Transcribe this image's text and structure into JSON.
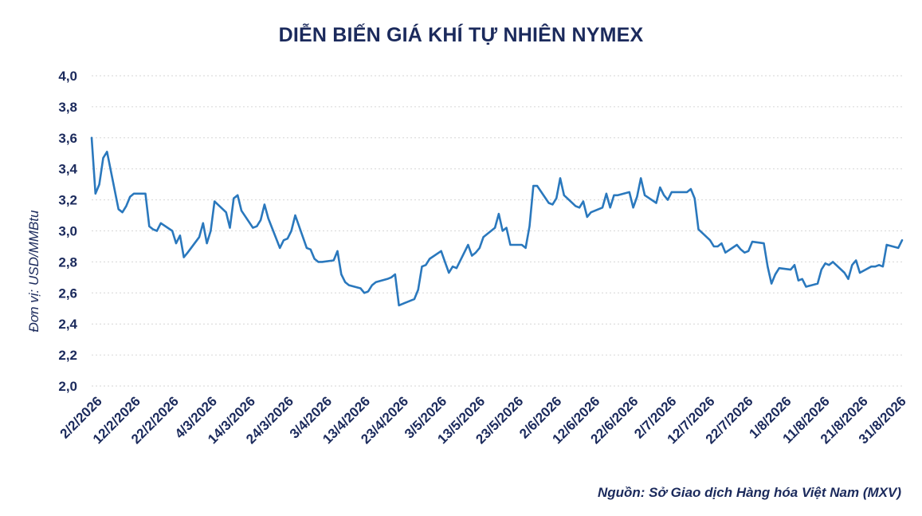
{
  "chart_data": {
    "type": "line",
    "title": "DIỄN BIẾN GIÁ KHÍ TỰ NHIÊN NYMEX",
    "ylabel": "Đơn vị: USD/MMBtu",
    "xlabel": "",
    "source": "Nguồn: Sở Giao dịch Hàng hóa Việt Nam (MXV)",
    "ylim": [
      2.0,
      4.0
    ],
    "yticks": [
      "4,0",
      "3,8",
      "3,6",
      "3,4",
      "3,2",
      "3,0",
      "2,8",
      "2,6",
      "2,4",
      "2,2",
      "2,0"
    ],
    "xticks": [
      "2/2/2026",
      "12/2/2026",
      "22/2/2026",
      "4/3/2026",
      "14/3/2026",
      "24/3/2026",
      "3/4/2026",
      "13/4/2026",
      "23/4/2026",
      "3/5/2026",
      "13/5/2026",
      "23/5/2026",
      "2/6/2026",
      "12/6/2026",
      "22/6/2026",
      "2/7/2026",
      "12/7/2026",
      "22/7/2026",
      "1/8/2026",
      "11/8/2026",
      "21/8/2026",
      "31/8/2026"
    ],
    "grid": true,
    "color": "#2a78bd",
    "series": [
      {
        "x": [
          "2026-02-02",
          "2026-02-03",
          "2026-02-04",
          "2026-02-05",
          "2026-02-06",
          "2026-02-09",
          "2026-02-10",
          "2026-02-11",
          "2026-02-12",
          "2026-02-13",
          "2026-02-16",
          "2026-02-17",
          "2026-02-18",
          "2026-02-19",
          "2026-02-20",
          "2026-02-23",
          "2026-02-24",
          "2026-02-25",
          "2026-02-26",
          "2026-02-27",
          "2026-03-02",
          "2026-03-03",
          "2026-03-04",
          "2026-03-05",
          "2026-03-06",
          "2026-03-09",
          "2026-03-10",
          "2026-03-11",
          "2026-03-12",
          "2026-03-13",
          "2026-03-16",
          "2026-03-17",
          "2026-03-18",
          "2026-03-19",
          "2026-03-20",
          "2026-03-23",
          "2026-03-24",
          "2026-03-25",
          "2026-03-26",
          "2026-03-27",
          "2026-03-30",
          "2026-03-31",
          "2026-04-01",
          "2026-04-02",
          "2026-04-03",
          "2026-04-06",
          "2026-04-07",
          "2026-04-08",
          "2026-04-09",
          "2026-04-10",
          "2026-04-13",
          "2026-04-14",
          "2026-04-15",
          "2026-04-16",
          "2026-04-17",
          "2026-04-20",
          "2026-04-21",
          "2026-04-22",
          "2026-04-23",
          "2026-04-24",
          "2026-04-27",
          "2026-04-28",
          "2026-04-29",
          "2026-04-30",
          "2026-05-01",
          "2026-05-04",
          "2026-05-05",
          "2026-05-06",
          "2026-05-07",
          "2026-05-08",
          "2026-05-11",
          "2026-05-12",
          "2026-05-13",
          "2026-05-14",
          "2026-05-15",
          "2026-05-18",
          "2026-05-19",
          "2026-05-20",
          "2026-05-21",
          "2026-05-22",
          "2026-05-25",
          "2026-05-26",
          "2026-05-27",
          "2026-05-28",
          "2026-05-29",
          "2026-06-01",
          "2026-06-02",
          "2026-06-03",
          "2026-06-04",
          "2026-06-05",
          "2026-06-08",
          "2026-06-09",
          "2026-06-10",
          "2026-06-11",
          "2026-06-12",
          "2026-06-15",
          "2026-06-16",
          "2026-06-17",
          "2026-06-18",
          "2026-06-19",
          "2026-06-22",
          "2026-06-23",
          "2026-06-24",
          "2026-06-25",
          "2026-06-26",
          "2026-06-29",
          "2026-06-30",
          "2026-07-01",
          "2026-07-02",
          "2026-07-03",
          "2026-07-06",
          "2026-07-07",
          "2026-07-08",
          "2026-07-09",
          "2026-07-10",
          "2026-07-13",
          "2026-07-14",
          "2026-07-15",
          "2026-07-16",
          "2026-07-17",
          "2026-07-20",
          "2026-07-21",
          "2026-07-22",
          "2026-07-23",
          "2026-07-24",
          "2026-07-27",
          "2026-07-28",
          "2026-07-29",
          "2026-07-30",
          "2026-07-31",
          "2026-08-03",
          "2026-08-04",
          "2026-08-05",
          "2026-08-06",
          "2026-08-07",
          "2026-08-10",
          "2026-08-11",
          "2026-08-12",
          "2026-08-13",
          "2026-08-14",
          "2026-08-17",
          "2026-08-18",
          "2026-08-19",
          "2026-08-20",
          "2026-08-21",
          "2026-08-24",
          "2026-08-25",
          "2026-08-26",
          "2026-08-27",
          "2026-08-28",
          "2026-08-31",
          "2026-09-01"
        ],
        "y": [
          3.6,
          3.24,
          3.3,
          3.47,
          3.51,
          3.14,
          3.12,
          3.16,
          3.22,
          3.24,
          3.24,
          3.03,
          3.01,
          3.0,
          3.05,
          3.0,
          2.92,
          2.97,
          2.83,
          2.86,
          2.96,
          3.05,
          2.92,
          3.0,
          3.19,
          3.12,
          3.02,
          3.21,
          3.23,
          3.13,
          3.02,
          3.03,
          3.07,
          3.17,
          3.08,
          2.89,
          2.94,
          2.95,
          3.0,
          3.1,
          2.89,
          2.88,
          2.82,
          2.8,
          2.8,
          2.81,
          2.87,
          2.72,
          2.67,
          2.65,
          2.63,
          2.6,
          2.61,
          2.65,
          2.67,
          2.69,
          2.7,
          2.72,
          2.52,
          2.53,
          2.56,
          2.62,
          2.77,
          2.78,
          2.82,
          2.87,
          2.8,
          2.73,
          2.77,
          2.76,
          2.91,
          2.84,
          2.86,
          2.89,
          2.96,
          3.02,
          3.11,
          3.0,
          3.02,
          2.91,
          2.91,
          2.89,
          3.03,
          3.29,
          3.29,
          3.18,
          3.17,
          3.21,
          3.34,
          3.23,
          3.16,
          3.15,
          3.19,
          3.09,
          3.12,
          3.15,
          3.24,
          3.15,
          3.23,
          3.23,
          3.25,
          3.15,
          3.22,
          3.34,
          3.23,
          3.18,
          3.28,
          3.23,
          3.2,
          3.25,
          3.25,
          3.25,
          3.27,
          3.21,
          3.01,
          2.94,
          2.9,
          2.9,
          2.92,
          2.86,
          2.91,
          2.88,
          2.86,
          2.87,
          2.93,
          2.92,
          2.77,
          2.66,
          2.72,
          2.76,
          2.75,
          2.78,
          2.68,
          2.69,
          2.64,
          2.66,
          2.75,
          2.79,
          2.78,
          2.8,
          2.73,
          2.69,
          2.78,
          2.81,
          2.73,
          2.77,
          2.77,
          2.78,
          2.77,
          2.91,
          2.89,
          2.94
        ]
      }
    ]
  }
}
